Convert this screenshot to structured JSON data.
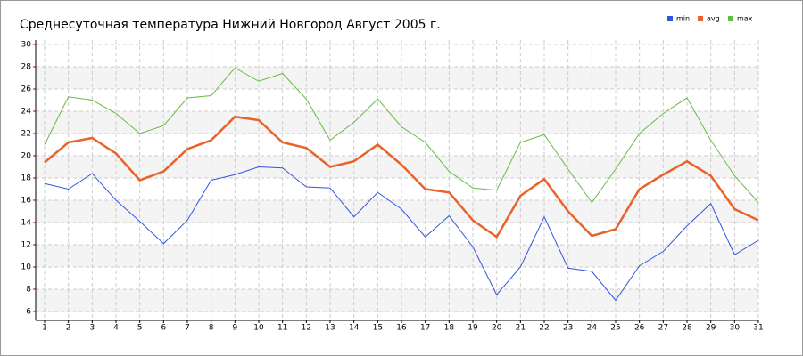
{
  "chart_data": {
    "type": "line",
    "title": "Среднесуточная температура Нижний Новгород  Август 2005 г.",
    "x": [
      1,
      2,
      3,
      4,
      5,
      6,
      7,
      8,
      9,
      10,
      11,
      12,
      13,
      14,
      15,
      16,
      17,
      18,
      19,
      20,
      21,
      22,
      23,
      24,
      25,
      26,
      27,
      28,
      29,
      30,
      31
    ],
    "xlim": [
      1,
      31
    ],
    "xticks": [
      1,
      2,
      3,
      4,
      5,
      6,
      7,
      8,
      9,
      10,
      11,
      12,
      13,
      14,
      15,
      16,
      17,
      18,
      19,
      20,
      21,
      22,
      23,
      24,
      25,
      26,
      27,
      28,
      29,
      30,
      31
    ],
    "ylim": [
      6,
      30
    ],
    "yticks": [
      6,
      8,
      10,
      12,
      14,
      16,
      18,
      20,
      22,
      24,
      26,
      28,
      30
    ],
    "grid": true,
    "legend": "top-right",
    "series": [
      {
        "name": "min",
        "color": "#3355dd",
        "values": [
          17.5,
          17.0,
          18.4,
          16.0,
          14.1,
          12.1,
          14.2,
          17.8,
          18.3,
          19.0,
          18.9,
          17.2,
          17.1,
          14.5,
          16.7,
          15.2,
          12.7,
          14.6,
          11.8,
          7.5,
          10.0,
          14.5,
          9.9,
          9.6,
          7.0,
          10.1,
          11.4,
          13.7,
          15.7,
          11.1,
          12.4
        ]
      },
      {
        "name": "avg",
        "color": "#e8622a",
        "values": [
          19.4,
          21.2,
          21.6,
          20.2,
          17.8,
          18.6,
          20.6,
          21.4,
          23.5,
          23.2,
          21.2,
          20.7,
          19.0,
          19.5,
          21.0,
          19.2,
          17.0,
          16.7,
          14.2,
          12.7,
          16.4,
          17.9,
          15.0,
          12.8,
          13.4,
          17.0,
          18.3,
          19.5,
          18.2,
          15.2,
          14.2
        ]
      },
      {
        "name": "max",
        "color": "#66bb44",
        "values": [
          21.0,
          25.3,
          25.0,
          23.8,
          22.0,
          22.7,
          25.2,
          25.4,
          27.9,
          26.7,
          27.4,
          25.1,
          21.4,
          23.0,
          25.1,
          22.6,
          21.2,
          18.6,
          17.1,
          16.9,
          21.2,
          21.9,
          18.8,
          15.8,
          18.8,
          22.0,
          23.8,
          25.2,
          21.4,
          18.2,
          15.8
        ]
      }
    ]
  }
}
